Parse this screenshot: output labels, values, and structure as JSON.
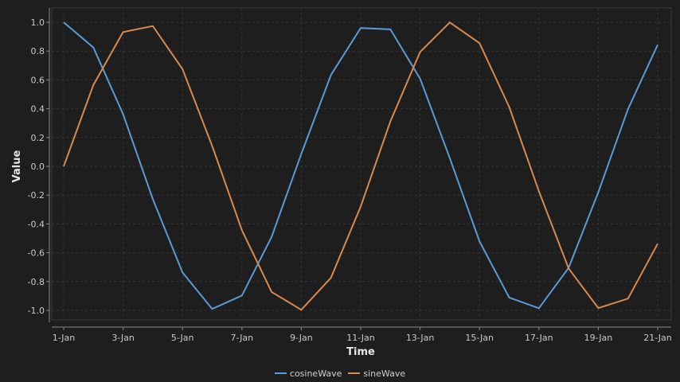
{
  "chart_data": {
    "type": "line",
    "title": "",
    "xlabel": "Time",
    "ylabel": "Value",
    "ylim": [
      -1.1,
      1.1
    ],
    "grid": true,
    "legend_position": "bottom",
    "x": [
      "1-Jan",
      "2-Jan",
      "3-Jan",
      "4-Jan",
      "5-Jan",
      "6-Jan",
      "7-Jan",
      "8-Jan",
      "9-Jan",
      "10-Jan",
      "11-Jan",
      "12-Jan",
      "13-Jan",
      "14-Jan",
      "15-Jan",
      "16-Jan",
      "17-Jan",
      "18-Jan",
      "19-Jan",
      "20-Jan",
      "21-Jan"
    ],
    "x_tick_labels": [
      "1-Jan",
      "3-Jan",
      "5-Jan",
      "7-Jan",
      "9-Jan",
      "11-Jan",
      "13-Jan",
      "15-Jan",
      "17-Jan",
      "19-Jan",
      "21-Jan"
    ],
    "y_tick_labels": [
      "1.0",
      "0.8",
      "0.6",
      "0.4",
      "0.2",
      "0.0",
      "-0.2",
      "-0.4",
      "-0.6",
      "-0.8",
      "-1.0"
    ],
    "series": [
      {
        "name": "cosineWave",
        "color": "#5b9bd5",
        "values": [
          1.0,
          0.825,
          0.362,
          -0.227,
          -0.737,
          -0.99,
          -0.897,
          -0.49,
          0.087,
          0.635,
          0.96,
          0.951,
          0.609,
          0.057,
          -0.521,
          -0.911,
          -0.985,
          -0.705,
          -0.18,
          0.397,
          0.844
        ]
      },
      {
        "name": "sineWave",
        "color": "#d88a4e",
        "values": [
          0.0,
          0.565,
          0.932,
          0.974,
          0.675,
          0.141,
          -0.443,
          -0.872,
          -0.996,
          -0.773,
          -0.279,
          0.312,
          0.794,
          0.999,
          0.855,
          0.412,
          -0.173,
          -0.709,
          -0.984,
          -0.918,
          -0.537
        ]
      }
    ]
  },
  "legend": {
    "items": [
      {
        "label": "cosineWave",
        "color": "#5b9bd5"
      },
      {
        "label": "sineWave",
        "color": "#d88a4e"
      }
    ]
  }
}
